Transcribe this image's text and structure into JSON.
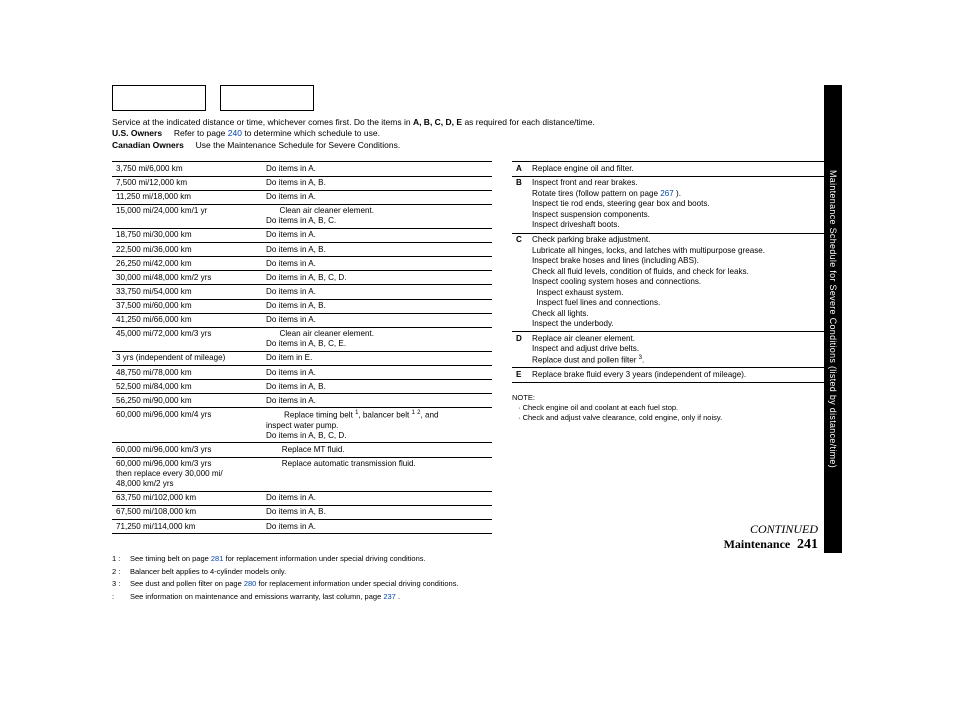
{
  "intro": {
    "line1a": "Service at the indicated distance or time, whichever comes first. Do the items in ",
    "line1b": "A, B, C, D, E",
    "line1c": " as required for each distance/time.",
    "us_label": "U.S. Owners",
    "us_text_a": "Refer to page ",
    "us_link": "240",
    "us_text_b": " to determine which schedule to use.",
    "can_label": "Canadian Owners",
    "can_text": "Use the Maintenance Schedule for Severe Conditions."
  },
  "schedule": [
    {
      "d": "3,750 mi/6,000 km",
      "a": "Do items in A."
    },
    {
      "d": "7,500 mi/12,000 km",
      "a": "Do items in A, B."
    },
    {
      "d": "11,250 mi/18,000 km",
      "a": "Do items in A."
    },
    {
      "d": "15,000 mi/24,000 km/1 yr",
      "a": "      Clean air cleaner element.\nDo items in A, B, C."
    },
    {
      "d": "18,750 mi/30,000 km",
      "a": "Do items in A."
    },
    {
      "d": "22,500 mi/36,000 km",
      "a": "Do items in A, B."
    },
    {
      "d": "26,250 mi/42,000 km",
      "a": "Do items in A."
    },
    {
      "d": "30,000 mi/48,000 km/2 yrs",
      "a": "Do items in A, B, C, D."
    },
    {
      "d": "33,750 mi/54,000 km",
      "a": "Do items in A."
    },
    {
      "d": "37,500 mi/60,000 km",
      "a": "Do items in A, B."
    },
    {
      "d": "41,250 mi/66,000 km",
      "a": "Do items in A."
    },
    {
      "d": "45,000 mi/72,000 km/3 yrs",
      "a": "      Clean air cleaner element.\nDo items in A, B, C, E."
    },
    {
      "d": "3 yrs (independent of mileage)",
      "a": "Do item in E."
    },
    {
      "d": "48,750 mi/78,000 km",
      "a": "Do items in A."
    },
    {
      "d": "52,500 mi/84,000 km",
      "a": "Do items in A, B."
    },
    {
      "d": "56,250 mi/90,000 km",
      "a": "Do items in A."
    },
    {
      "d": "60,000 mi/96,000 km/4 yrs",
      "a": "        Replace timing belt ¹, balancer belt ¹ ², and\ninspect water pump.\nDo items in A, B, C, D."
    },
    {
      "d": "60,000 mi/96,000 km/3 yrs",
      "a": "       Replace MT fluid."
    },
    {
      "d": "60,000 mi/96,000 km/3 yrs\nthen replace every 30,000 mi/\n48,000 km/2 yrs",
      "a": "       Replace automatic transmission fluid."
    },
    {
      "d": "63,750 mi/102,000 km",
      "a": "Do items in A."
    },
    {
      "d": "67,500 mi/108,000 km",
      "a": "Do items in A, B."
    },
    {
      "d": "71,250 mi/114,000 km",
      "a": "Do items in A."
    }
  ],
  "codes": [
    {
      "k": "A",
      "v": "Replace engine oil and filter."
    },
    {
      "k": "B",
      "v": "Inspect front and rear brakes.\nRotate tires (follow pattern on page |267| ).\nInspect tie rod ends, steering gear box and boots.\nInspect suspension components.\nInspect driveshaft boots."
    },
    {
      "k": "C",
      "v": "Check parking brake adjustment.\nLubricate all hinges, locks, and latches with multipurpose grease.\nInspect brake hoses and lines (including ABS).\nCheck all fluid levels, condition of fluids, and check for leaks.\nInspect cooling system hoses and connections.\n  Inspect exhaust system.\n  Inspect fuel lines and connections.\nCheck all lights.\nInspect the underbody."
    },
    {
      "k": "D",
      "v": "Replace air cleaner element.\nInspect and adjust drive belts.\nReplace dust and pollen filter ³."
    },
    {
      "k": "E",
      "v": "Replace brake fluid every 3 years (independent of mileage)."
    }
  ],
  "note": {
    "label": "NOTE:",
    "items": [
      "Check engine oil and coolant at each fuel stop.",
      "Check and adjust valve clearance, cold engine, only if noisy."
    ]
  },
  "footnotes": [
    {
      "n": "1 :",
      "t": "See timing belt on page |281| for replacement information under special driving conditions."
    },
    {
      "n": "2 :",
      "t": "Balancer belt applies to 4-cylinder models only."
    },
    {
      "n": "3 :",
      "t": "See dust and pollen filter on page |280| for replacement information under special driving conditions."
    },
    {
      "n": " :",
      "t": "See information on maintenance and emissions warranty, last column, page |237| ."
    }
  ],
  "sidebar": "Maintenance Schedule for Severe Conditions (listed by distance/time)",
  "footer": {
    "continued": "CONTINUED",
    "section": "Maintenance",
    "page": "241"
  },
  "colors": {
    "link": "#0645ad"
  }
}
